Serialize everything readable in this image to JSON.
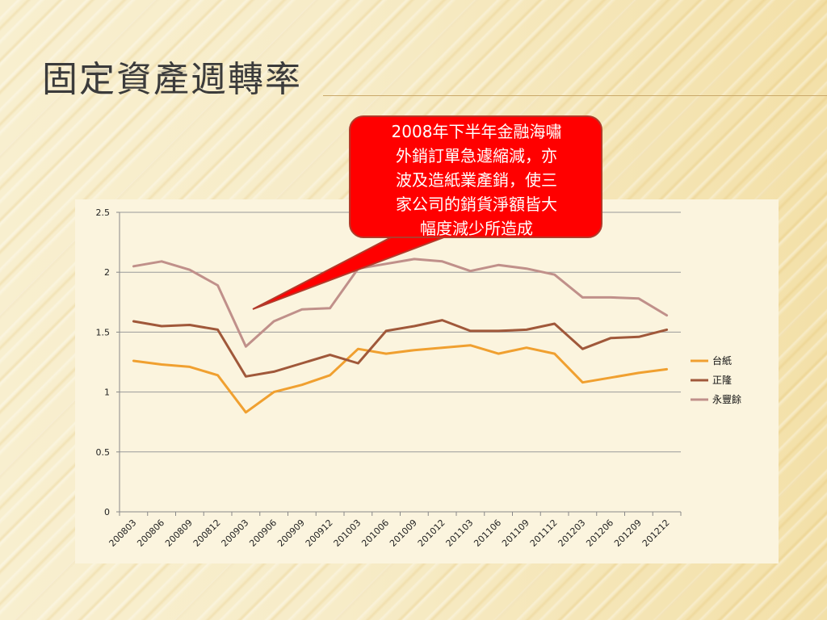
{
  "slide": {
    "title": "固定資產週轉率"
  },
  "callout": {
    "lines": [
      "2008年下半年金融海嘯",
      "外銷訂單急遽縮減，亦",
      "波及造紙業產銷，使三",
      "家公司的銷貨淨額皆大",
      "幅度減少所造成"
    ],
    "fill_color": "#ff0000"
  },
  "chart_data": {
    "type": "line",
    "title": "",
    "xlabel": "",
    "ylabel": "",
    "ylim": [
      0,
      2.5
    ],
    "yticks": [
      "0",
      "0.5",
      "1",
      "1.5",
      "2",
      "2.5"
    ],
    "grid": true,
    "legend_position": "right",
    "x": [
      "200803",
      "200806",
      "200809",
      "200812",
      "200903",
      "200906",
      "200909",
      "200912",
      "201003",
      "201006",
      "201009",
      "201012",
      "201103",
      "201106",
      "201109",
      "201112",
      "201203",
      "201206",
      "201209",
      "201212"
    ],
    "series": [
      {
        "name": "台紙",
        "color": "#f0a030",
        "values": [
          1.26,
          1.23,
          1.21,
          1.14,
          0.83,
          1.0,
          1.06,
          1.14,
          1.36,
          1.32,
          1.35,
          1.37,
          1.39,
          1.32,
          1.37,
          1.32,
          1.08,
          1.12,
          1.16,
          1.19
        ]
      },
      {
        "name": "正隆",
        "color": "#a0583a",
        "values": [
          1.59,
          1.55,
          1.56,
          1.52,
          1.13,
          1.17,
          1.24,
          1.31,
          1.24,
          1.51,
          1.55,
          1.6,
          1.51,
          1.51,
          1.52,
          1.57,
          1.36,
          1.45,
          1.46,
          1.52
        ]
      },
      {
        "name": "永豐餘",
        "color": "#c0908a",
        "values": [
          2.05,
          2.09,
          2.02,
          1.89,
          1.38,
          1.59,
          1.69,
          1.7,
          2.03,
          2.07,
          2.11,
          2.09,
          2.01,
          2.06,
          2.03,
          1.98,
          1.79,
          1.79,
          1.78,
          1.64
        ]
      }
    ]
  }
}
